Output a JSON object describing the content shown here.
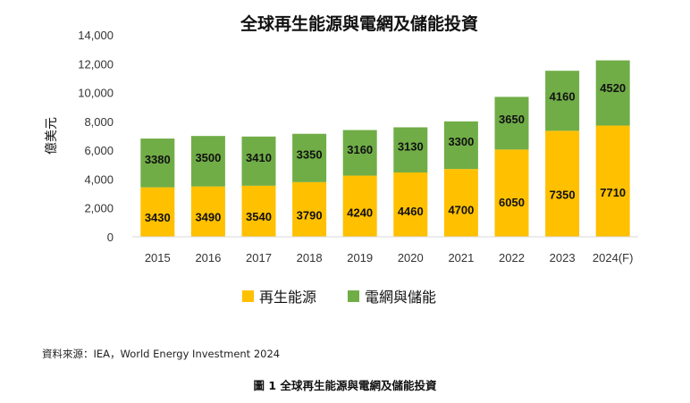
{
  "chart_data": {
    "type": "bar",
    "stacked": true,
    "title": "全球再生能源與電網及儲能投資",
    "ylabel": "億美元",
    "xlabel": "",
    "ylim": [
      0,
      14000
    ],
    "yticks": [
      "0",
      "2,000",
      "4,000",
      "6,000",
      "8,000",
      "10,000",
      "12,000",
      "14,000"
    ],
    "categories": [
      "2015",
      "2016",
      "2017",
      "2018",
      "2019",
      "2020",
      "2021",
      "2022",
      "2023",
      "2024(F)"
    ],
    "series": [
      {
        "name": "再生能源",
        "color": "#ffc000",
        "values": [
          3430,
          3490,
          3540,
          3790,
          4240,
          4460,
          4700,
          6050,
          7350,
          7710
        ]
      },
      {
        "name": "電網與儲能",
        "color": "#70ad47",
        "values": [
          3380,
          3500,
          3410,
          3350,
          3160,
          3130,
          3300,
          3650,
          4160,
          4520
        ]
      }
    ],
    "legend_position": "bottom",
    "grid": false
  },
  "source": "資料來源：IEA，World Energy Investment 2024",
  "caption": "圖 1  全球再生能源與電網及儲能投資"
}
